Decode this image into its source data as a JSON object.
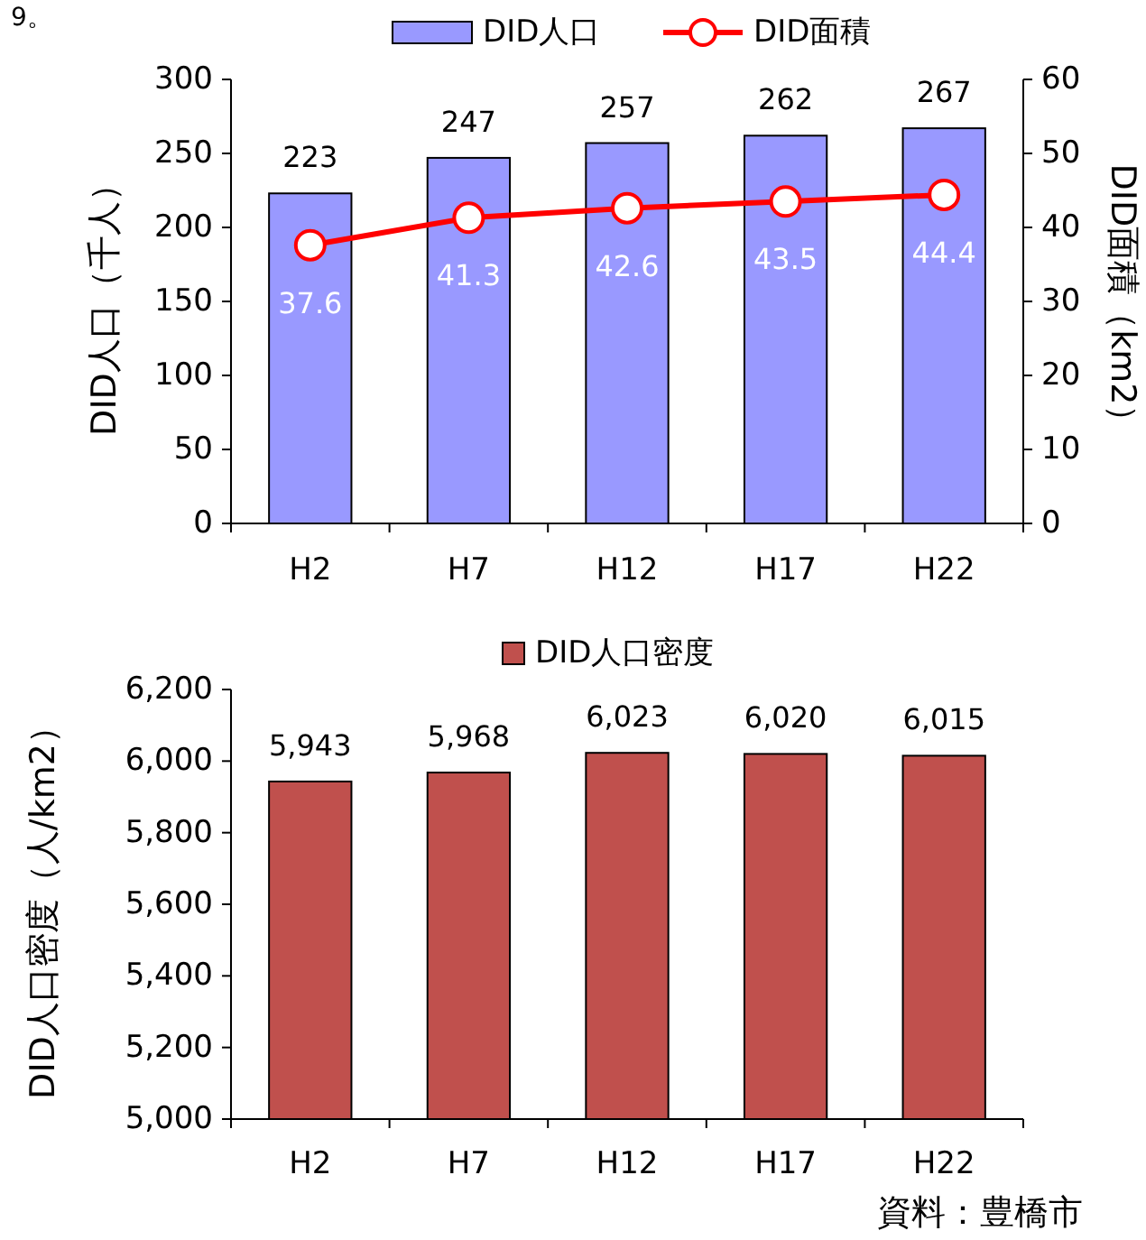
{
  "chart_data": [
    {
      "type": "bar",
      "categories": [
        "H2",
        "H7",
        "H12",
        "H17",
        "H22"
      ],
      "ylabel": "DID人口（千人）",
      "y2label": "DID面積（km2）",
      "ylim": [
        0,
        300
      ],
      "yticks": [
        0,
        50,
        100,
        150,
        200,
        250,
        300
      ],
      "y2lim": [
        0,
        60
      ],
      "y2ticks": [
        0,
        10,
        20,
        30,
        40,
        50,
        60
      ],
      "legend": "top",
      "data_labels": true,
      "marker": "circle",
      "annotations": [
        "9。"
      ],
      "series": [
        {
          "name": "DID人口",
          "type": "bar",
          "color": "#9999ff",
          "values": [
            223,
            247,
            257,
            262,
            267
          ]
        },
        {
          "name": "DID面積",
          "type": "line",
          "axis": "y2",
          "color": "#ff0000",
          "values": [
            37.6,
            41.3,
            42.6,
            43.5,
            44.4
          ]
        }
      ]
    },
    {
      "type": "bar",
      "categories": [
        "H2",
        "H7",
        "H12",
        "H17",
        "H22"
      ],
      "ylabel": "DID人口密度（人/km2）",
      "ylim": [
        5000,
        6200
      ],
      "yticks": [
        {
          "value": 5000,
          "label": "5,000"
        },
        {
          "value": 5200,
          "label": "5,200"
        },
        {
          "value": 5400,
          "label": "5,400"
        },
        {
          "value": 5600,
          "label": "5,600"
        },
        {
          "value": 5800,
          "label": "5,800"
        },
        {
          "value": 6000,
          "label": "6,000"
        },
        {
          "value": 6200,
          "label": "6,200"
        }
      ],
      "legend": "top",
      "annotations": [
        "資料：豊橋市"
      ],
      "series": [
        {
          "name": "DID人口密度",
          "color": "#c0504d",
          "values": [
            5943,
            5968,
            6023,
            6020,
            6015
          ],
          "value_labels": [
            "5,943",
            "5,968",
            "6,023",
            "6,020",
            "6,015"
          ]
        }
      ]
    }
  ]
}
